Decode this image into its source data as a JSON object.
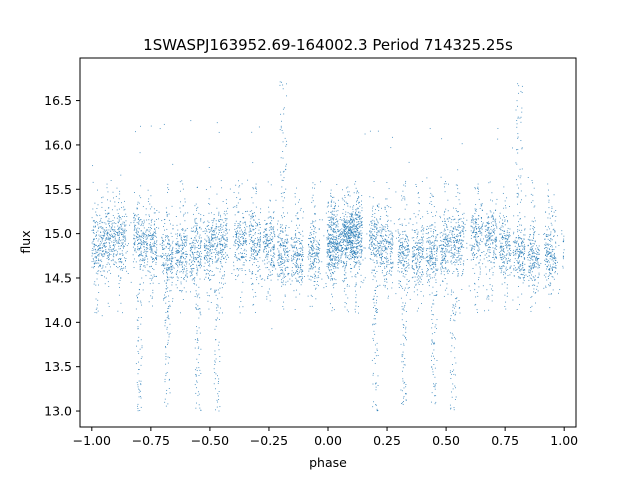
{
  "chart_data": {
    "type": "scatter",
    "title": "1SWASPJ163952.69-164002.3 Period 714325.25s",
    "xlabel": "phase",
    "ylabel": "flux",
    "xlim": [
      -1.05,
      1.05
    ],
    "ylim": [
      12.82,
      16.98
    ],
    "xticks": [
      -1.0,
      -0.75,
      -0.5,
      -0.25,
      0.0,
      0.25,
      0.5,
      0.75,
      1.0
    ],
    "xtick_labels": [
      "−1.00",
      "−0.75",
      "−0.50",
      "−0.25",
      "0.00",
      "0.25",
      "0.50",
      "0.75",
      "1.00"
    ],
    "yticks": [
      13.0,
      13.5,
      14.0,
      14.5,
      15.0,
      15.5,
      16.0,
      16.5
    ],
    "ytick_labels": [
      "13.0",
      "13.5",
      "14.0",
      "14.5",
      "15.0",
      "15.5",
      "16.0",
      "16.5"
    ],
    "grid": false,
    "marker_color": "#1f77b4",
    "phase_range": [
      -1.0,
      1.0
    ],
    "baseline_flux": 14.85,
    "main_scatter_band": [
      14.4,
      15.3
    ],
    "low_outlier_clusters_phase": [
      -0.8,
      -0.68,
      -0.55,
      -0.47,
      0.2,
      0.32,
      0.45,
      0.53
    ],
    "low_outlier_flux_min": 13.0,
    "high_outlier_clusters_phase": [
      -0.19,
      0.81
    ],
    "high_outlier_flux_max": 16.75
  }
}
